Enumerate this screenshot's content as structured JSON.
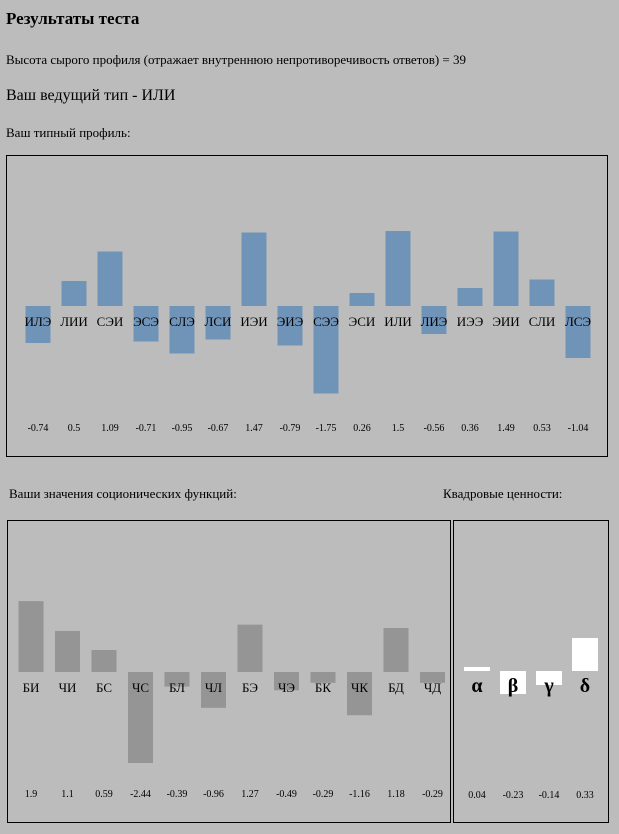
{
  "page": {
    "title": "Результаты теста",
    "raw_height_line": "Высота сырого профиля (отражает внутреннюю непротиворечивость ответов) = 39",
    "leading_type_line": "Ваш ведущий тип - ИЛИ",
    "profile_label": "Ваш типный профиль:",
    "functions_label": "Ваши значения соционических функций:",
    "quadra_label": "Квадровые ценности:"
  },
  "colors": {
    "background": "#bcbcbc",
    "type_bar": "#7094b8",
    "function_bar": "#959595",
    "quadra_bar": "#ffffff"
  },
  "chart_data": [
    {
      "type": "bar",
      "title": "Ваш типный профиль:",
      "categories": [
        "ИЛЭ",
        "ЛИИ",
        "СЭИ",
        "ЭСЭ",
        "СЛЭ",
        "ЛСИ",
        "ИЭИ",
        "ЭИЭ",
        "СЭЭ",
        "ЭСИ",
        "ИЛИ",
        "ЛИЭ",
        "ИЭЭ",
        "ЭИИ",
        "СЛИ",
        "ЛСЭ"
      ],
      "values": [
        -0.74,
        0.5,
        1.09,
        -0.71,
        -0.95,
        -0.67,
        1.47,
        -0.79,
        -1.75,
        0.26,
        1.5,
        -0.56,
        0.36,
        1.49,
        0.53,
        -1.04
      ],
      "value_labels": [
        "-0.74",
        "0.5",
        "1.09",
        "-0.71",
        "-0.95",
        "-0.67",
        "1.47",
        "-0.79",
        "-1.75",
        "0.26",
        "1.5",
        "-0.56",
        "0.36",
        "1.49",
        "0.53",
        "-1.04"
      ],
      "ylim": [
        -1.75,
        1.5
      ]
    },
    {
      "type": "bar",
      "title": "Ваши значения соционических функций:",
      "categories": [
        "БИ",
        "ЧИ",
        "БС",
        "ЧС",
        "БЛ",
        "ЧЛ",
        "БЭ",
        "ЧЭ",
        "БК",
        "ЧК",
        "БД",
        "ЧД"
      ],
      "values": [
        1.9,
        1.1,
        0.59,
        -2.44,
        -0.39,
        -0.96,
        1.27,
        -0.49,
        -0.29,
        -1.16,
        1.18,
        -0.29
      ],
      "value_labels": [
        "1.9",
        "1.1",
        "0.59",
        "-2.44",
        "-0.39",
        "-0.96",
        "1.27",
        "-0.49",
        "-0.29",
        "-1.16",
        "1.18",
        "-0.29"
      ],
      "ylim": [
        -2.44,
        1.9
      ]
    },
    {
      "type": "bar",
      "title": "Квадровые ценности:",
      "categories": [
        "α",
        "β",
        "γ",
        "δ"
      ],
      "values": [
        0.04,
        -0.23,
        -0.14,
        0.33
      ],
      "value_labels": [
        "0.04",
        "-0.23",
        "-0.14",
        "0.33"
      ],
      "ylim": [
        -0.3,
        0.33
      ]
    }
  ]
}
